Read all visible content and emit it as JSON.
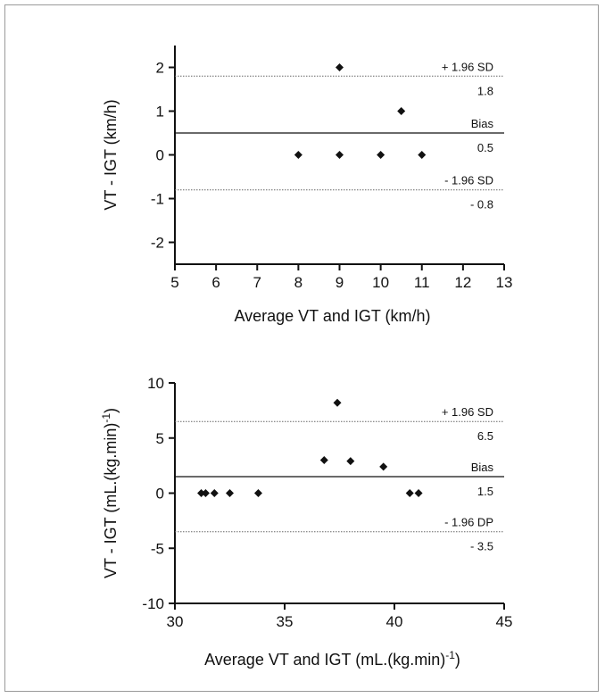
{
  "chart_data": [
    {
      "type": "scatter",
      "xlabel": "Average VT and IGT (km/h)",
      "ylabel": "VT - IGT (km/h)",
      "xlim": [
        5,
        13
      ],
      "ylim": [
        -2.5,
        2.5
      ],
      "xticks": [
        "5",
        "6",
        "7",
        "8",
        "9",
        "10",
        "11",
        "12",
        "13"
      ],
      "yticks": [
        "-2",
        "-1",
        "0",
        "1",
        "2"
      ],
      "grid": false,
      "points": [
        {
          "x": 9,
          "y": 2
        },
        {
          "x": 10.5,
          "y": 1
        },
        {
          "x": 8,
          "y": 0
        },
        {
          "x": 9,
          "y": 0
        },
        {
          "x": 10,
          "y": 0
        },
        {
          "x": 11,
          "y": 0
        }
      ],
      "reference_lines": [
        {
          "label": "+ 1.96 SD",
          "value_label": "1.8",
          "y": 1.8,
          "style": "dotted"
        },
        {
          "label": "Bias",
          "value_label": "0.5",
          "y": 0.5,
          "style": "solid"
        },
        {
          "label": "- 1.96 SD",
          "value_label": "- 0.8",
          "y": -0.8,
          "style": "dotted"
        }
      ]
    },
    {
      "type": "scatter",
      "xlabel": "Average VT and IGT (mL.(kg.min)",
      "xlabel_sup": "-1",
      "xlabel_end": ")",
      "ylabel": "VT - IGT (mL.(kg.min)",
      "ylabel_sup": "-1",
      "ylabel_end": ")",
      "xlim": [
        30,
        45
      ],
      "ylim": [
        -10,
        10
      ],
      "xticks": [
        "30",
        "35",
        "40",
        "45"
      ],
      "yticks": [
        "-10",
        "-5",
        "0",
        "5",
        "10"
      ],
      "grid": false,
      "points": [
        {
          "x": 31.2,
          "y": 0
        },
        {
          "x": 31.4,
          "y": 0
        },
        {
          "x": 31.8,
          "y": 0
        },
        {
          "x": 32.5,
          "y": 0
        },
        {
          "x": 33.8,
          "y": 0
        },
        {
          "x": 36.8,
          "y": 3
        },
        {
          "x": 37.4,
          "y": 8.2
        },
        {
          "x": 38,
          "y": 2.9
        },
        {
          "x": 39.5,
          "y": 2.4
        },
        {
          "x": 40.7,
          "y": 0
        },
        {
          "x": 41.1,
          "y": 0
        }
      ],
      "reference_lines": [
        {
          "label": "+ 1.96 SD",
          "value_label": "6.5",
          "y": 6.5,
          "style": "dotted"
        },
        {
          "label": "Bias",
          "value_label": "1.5",
          "y": 1.5,
          "style": "solid"
        },
        {
          "label": "- 1.96 DP",
          "value_label": "- 3.5",
          "y": -3.5,
          "style": "dotted"
        }
      ]
    }
  ]
}
